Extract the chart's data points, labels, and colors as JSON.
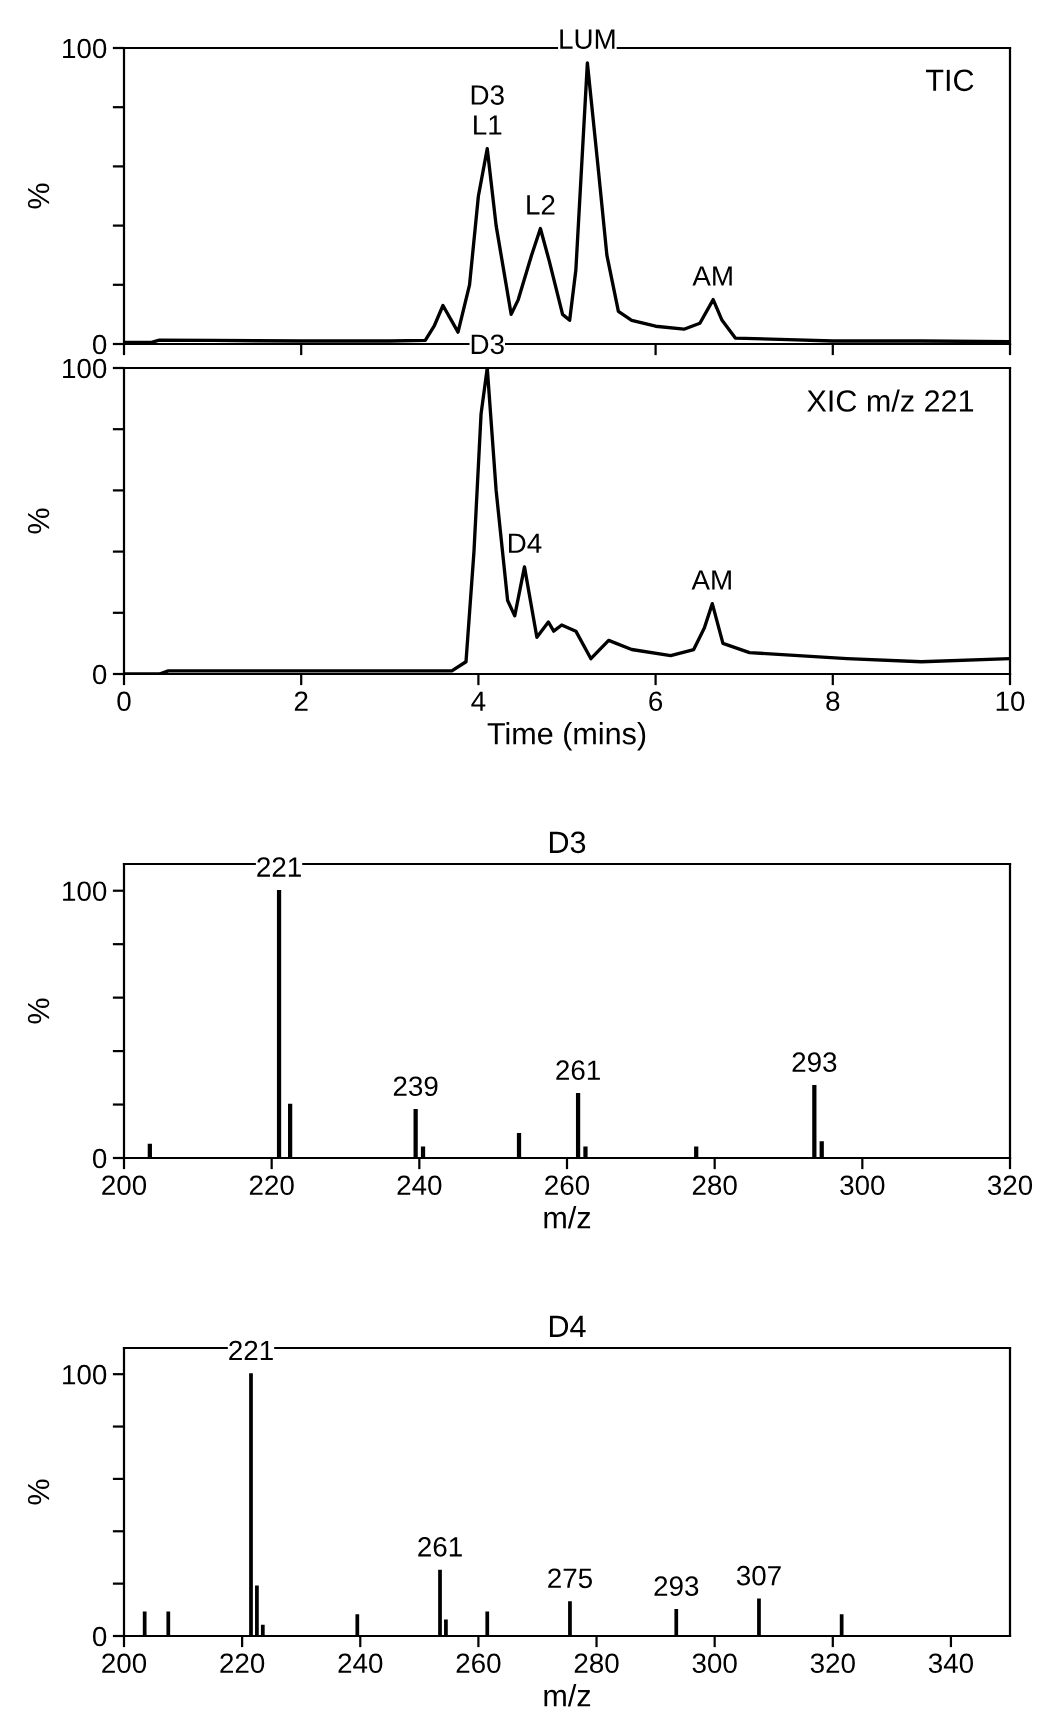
{
  "chart_data": [
    {
      "type": "line",
      "ylabel": "%",
      "x": [
        0,
        0.3,
        0.4,
        1,
        2,
        3,
        3.4,
        3.5,
        3.6,
        3.77,
        3.9,
        4.0,
        4.1,
        4.2,
        4.37,
        4.45,
        4.6,
        4.7,
        4.8,
        4.95,
        5.03,
        5.1,
        5.23,
        5.35,
        5.45,
        5.58,
        5.73,
        6.0,
        6.32,
        6.5,
        6.65,
        6.75,
        6.9,
        7.5,
        8,
        9,
        10
      ],
      "series": [
        {
          "color": "#000000",
          "values": [
            0.5,
            0.5,
            1.3,
            1.2,
            1,
            1,
            1.2,
            6,
            13,
            4,
            20,
            50,
            66,
            40,
            10,
            15,
            30,
            39,
            28,
            10,
            8,
            25,
            95,
            60,
            30,
            11,
            8,
            6,
            5,
            7,
            15,
            8,
            2,
            1.5,
            1,
            1,
            0.8
          ]
        }
      ],
      "xlim": [
        0,
        10
      ],
      "ylim": [
        0,
        100
      ],
      "xticks": [
        0,
        2,
        4,
        6,
        8,
        10
      ],
      "yticks": [
        0,
        {
          "value": 20,
          "label": null
        },
        {
          "value": 40,
          "label": null
        },
        {
          "value": 60,
          "label": null
        },
        {
          "value": 80,
          "label": null
        },
        100
      ],
      "tick_labels": "y",
      "annotations": [
        {
          "text": "D3\nL1",
          "x": 4.1,
          "y": 66
        },
        {
          "text": "L2",
          "x": 4.7,
          "y": 39
        },
        {
          "text": "LUM",
          "x": 5.23,
          "y": 95
        },
        {
          "text": "AM",
          "x": 6.65,
          "y": 15
        },
        "TIC"
      ],
      "grid": false,
      "legend": false
    },
    {
      "type": "line",
      "ylabel": "%",
      "xlabel": "Time (mins)",
      "x": [
        0,
        0.4,
        0.5,
        1,
        2,
        3,
        3.7,
        3.86,
        3.95,
        4.03,
        4.1,
        4.2,
        4.33,
        4.41,
        4.52,
        4.66,
        4.79,
        4.85,
        4.94,
        5.1,
        5.27,
        5.47,
        5.73,
        6.17,
        6.43,
        6.55,
        6.64,
        6.76,
        7.06,
        8.16,
        9,
        10
      ],
      "series": [
        {
          "color": "#000000",
          "values": [
            0,
            0,
            1,
            1,
            1,
            1,
            1,
            4,
            40,
            85,
            100,
            60,
            24,
            19,
            35,
            12,
            17,
            14,
            16,
            14,
            5,
            11,
            8,
            6,
            8,
            15,
            23,
            10,
            7,
            5,
            4,
            5
          ]
        }
      ],
      "xlim": [
        0,
        10
      ],
      "ylim": [
        0,
        100
      ],
      "xticks": [
        0,
        2,
        4,
        6,
        8,
        10
      ],
      "yticks": [
        0,
        {
          "value": 20,
          "label": null
        },
        {
          "value": 40,
          "label": null
        },
        {
          "value": 60,
          "label": null
        },
        {
          "value": 80,
          "label": null
        },
        100
      ],
      "annotations": [
        {
          "text": "D3",
          "x": 4.1,
          "y": 100
        },
        {
          "text": "D4",
          "x": 4.52,
          "y": 35
        },
        {
          "text": "AM",
          "x": 6.64,
          "y": 23
        },
        "XIC m/z 221"
      ],
      "grid": false,
      "legend": false
    },
    {
      "type": "bar",
      "title": "D3",
      "xlabel": "m/z",
      "ylabel": "%",
      "x": [
        203.5,
        221,
        222.5,
        239.5,
        240.5,
        253.5,
        261.5,
        262.5,
        277.5,
        293.5,
        294.5
      ],
      "series": [
        {
          "color": "#000000",
          "values": [
            5,
            100,
            20,
            18,
            4,
            9,
            24,
            4,
            4,
            27,
            6
          ]
        }
      ],
      "xlim": [
        200,
        320
      ],
      "ylim": [
        0,
        110
      ],
      "xticks": [
        200,
        220,
        240,
        260,
        280,
        300,
        320
      ],
      "yticks": [
        0,
        {
          "value": 20,
          "label": null
        },
        {
          "value": 40,
          "label": null
        },
        {
          "value": 60,
          "label": null
        },
        {
          "value": 80,
          "label": null
        },
        100
      ],
      "annotations": [
        {
          "text": "221",
          "x": 221,
          "y": 100
        },
        {
          "text": "239",
          "x": 239.5,
          "y": 18
        },
        {
          "text": "261",
          "x": 261.5,
          "y": 24
        },
        {
          "text": "293",
          "x": 293.5,
          "y": 27
        }
      ],
      "grid": false,
      "legend": false
    },
    {
      "type": "bar",
      "title": "D4",
      "xlabel": "m/z",
      "ylabel": "%",
      "x": [
        203.5,
        207.5,
        221.5,
        222.5,
        223.5,
        239.5,
        253.5,
        254.5,
        261.5,
        275.5,
        293.5,
        307.5,
        321.5
      ],
      "series": [
        {
          "color": "#000000",
          "values": [
            9,
            9,
            100,
            19,
            4,
            8,
            25,
            6,
            9,
            13,
            10,
            14,
            8
          ]
        }
      ],
      "xlim": [
        200,
        350
      ],
      "ylim": [
        0,
        110
      ],
      "xticks": [
        200,
        220,
        240,
        260,
        280,
        300,
        320,
        340
      ],
      "yticks": [
        0,
        {
          "value": 20,
          "label": null
        },
        {
          "value": 40,
          "label": null
        },
        {
          "value": 60,
          "label": null
        },
        {
          "value": 80,
          "label": null
        },
        100
      ],
      "annotations": [
        {
          "text": "221",
          "x": 221.5,
          "y": 100
        },
        {
          "text": "261",
          "x": 253.5,
          "y": 25
        },
        {
          "text": "275",
          "x": 275.5,
          "y": 13
        },
        {
          "text": "293",
          "x": 293.5,
          "y": 10
        },
        {
          "text": "307",
          "x": 307.5,
          "y": 14
        }
      ],
      "grid": false,
      "legend": false
    }
  ]
}
